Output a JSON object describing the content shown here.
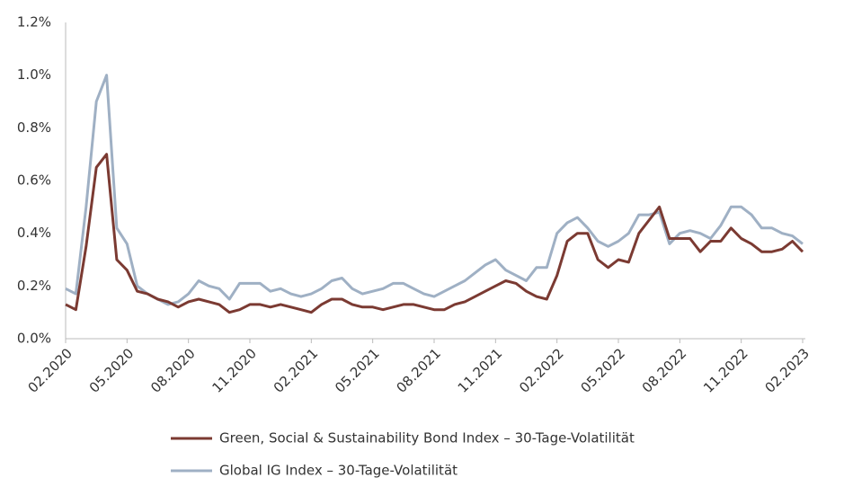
{
  "chart_data": {
    "type": "line",
    "categories": [
      "02.2020",
      null,
      null,
      null,
      null,
      null,
      "05.2020",
      null,
      null,
      null,
      null,
      null,
      "08.2020",
      null,
      null,
      null,
      null,
      null,
      "11.2020",
      null,
      null,
      null,
      null,
      null,
      "02.2021",
      null,
      null,
      null,
      null,
      null,
      "05.2021",
      null,
      null,
      null,
      null,
      null,
      "08.2021",
      null,
      null,
      null,
      null,
      null,
      "11.2021",
      null,
      null,
      null,
      null,
      null,
      "02.2022",
      null,
      null,
      null,
      null,
      null,
      "05.2022",
      null,
      null,
      null,
      null,
      null,
      "08.2022",
      null,
      null,
      null,
      null,
      null,
      "11.2022",
      null,
      null,
      null,
      null,
      null,
      "02.2023"
    ],
    "series": [
      {
        "name": "Green, Social & Sustainability Bond Index – 30-Tage-Volatilität",
        "color": "#7b3a32",
        "values": [
          0.13,
          0.11,
          0.35,
          0.65,
          0.7,
          0.3,
          0.26,
          0.18,
          0.17,
          0.15,
          0.14,
          0.12,
          0.14,
          0.15,
          0.14,
          0.13,
          0.1,
          0.11,
          0.13,
          0.13,
          0.12,
          0.13,
          0.12,
          0.11,
          0.1,
          0.13,
          0.15,
          0.15,
          0.13,
          0.12,
          0.12,
          0.11,
          0.12,
          0.13,
          0.13,
          0.12,
          0.11,
          0.11,
          0.13,
          0.14,
          0.16,
          0.18,
          0.2,
          0.22,
          0.21,
          0.18,
          0.16,
          0.15,
          0.24,
          0.37,
          0.4,
          0.4,
          0.3,
          0.27,
          0.3,
          0.29,
          0.4,
          0.45,
          0.5,
          0.38,
          0.38,
          0.38,
          0.33,
          0.37,
          0.37,
          0.42,
          0.38,
          0.36,
          0.33,
          0.33,
          0.34,
          0.37,
          0.33
        ]
      },
      {
        "name": "Global IG Index – 30-Tage-Volatilität",
        "color": "#9fb0c4",
        "values": [
          0.19,
          0.17,
          0.5,
          0.9,
          1.0,
          0.42,
          0.36,
          0.2,
          0.17,
          0.15,
          0.13,
          0.14,
          0.17,
          0.22,
          0.2,
          0.19,
          0.15,
          0.21,
          0.21,
          0.21,
          0.18,
          0.19,
          0.17,
          0.16,
          0.17,
          0.19,
          0.22,
          0.23,
          0.19,
          0.17,
          0.18,
          0.19,
          0.21,
          0.21,
          0.19,
          0.17,
          0.16,
          0.18,
          0.2,
          0.22,
          0.25,
          0.28,
          0.3,
          0.26,
          0.24,
          0.22,
          0.27,
          0.27,
          0.4,
          0.44,
          0.46,
          0.42,
          0.37,
          0.35,
          0.37,
          0.4,
          0.47,
          0.47,
          0.48,
          0.36,
          0.4,
          0.41,
          0.4,
          0.38,
          0.43,
          0.5,
          0.5,
          0.47,
          0.42,
          0.42,
          0.4,
          0.39,
          0.36
        ]
      }
    ],
    "ylim": [
      0,
      1.2
    ],
    "yticks": [
      {
        "value": 0,
        "label": "0.0%"
      },
      {
        "value": 0.2,
        "label": "0.2%"
      },
      {
        "value": 0.4,
        "label": "0.4%"
      },
      {
        "value": 0.6,
        "label": "0.6%"
      },
      {
        "value": 0.8,
        "label": "0.8%"
      },
      {
        "value": 1.0,
        "label": "1.0%"
      },
      {
        "value": 1.2,
        "label": "1.2%"
      }
    ],
    "grid": false
  }
}
